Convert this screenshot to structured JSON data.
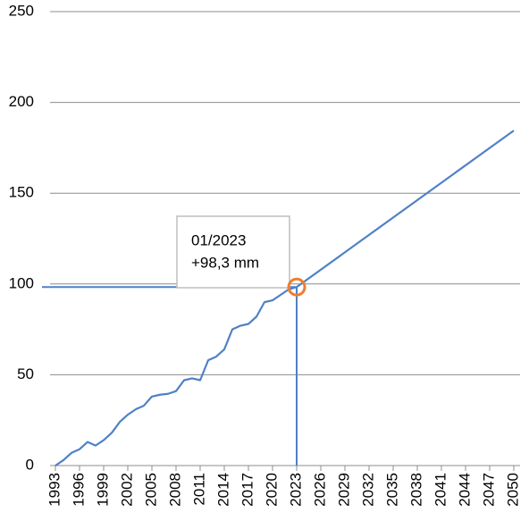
{
  "chart_data": {
    "type": "line",
    "series": [
      {
        "color": "#4f81c7",
        "x": [
          1993,
          1994,
          1995,
          1996,
          1997,
          1998,
          1999,
          2000,
          2001,
          2002,
          2003,
          2004,
          2005,
          2006,
          2007,
          2008,
          2009,
          2010,
          2011,
          2012,
          2013,
          2014,
          2015,
          2016,
          2017,
          2018,
          2019,
          2020,
          2021,
          2022,
          2023
        ],
        "values": [
          0,
          3,
          7,
          9,
          13,
          11,
          14,
          18,
          24,
          28,
          31,
          33,
          38,
          39,
          39.5,
          41,
          47,
          48,
          47,
          58,
          60,
          64,
          75,
          77,
          78,
          82,
          90,
          91,
          94,
          97,
          98.3
        ]
      },
      {
        "color": "#4f81c7",
        "x": [
          2023,
          2050
        ],
        "values": [
          98.3,
          184.5
        ]
      }
    ],
    "highlight": {
      "x": 2023,
      "y": 98.3,
      "color": "#ed7d31",
      "label": [
        "01/2023",
        "+98,3 mm"
      ]
    },
    "xlim": [
      1993,
      2050
    ],
    "xticks": [
      1993,
      1996,
      1999,
      2002,
      2005,
      2008,
      2011,
      2014,
      2017,
      2020,
      2023,
      2026,
      2029,
      2032,
      2035,
      2038,
      2041,
      2044,
      2047,
      2050
    ],
    "ylim": [
      0,
      250
    ],
    "yticks": [
      0,
      50,
      100,
      150,
      200,
      250
    ],
    "grid": true
  }
}
